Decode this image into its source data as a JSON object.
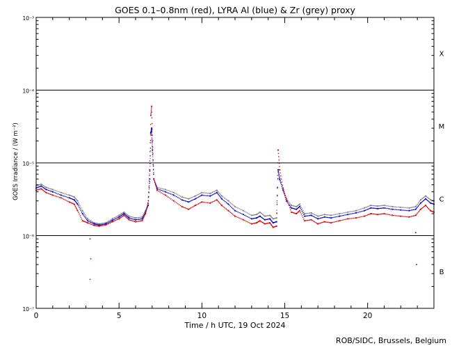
{
  "chart_data": {
    "type": "line",
    "title": "GOES 0.1–0.8nm (red), LYRA Al (blue) & Zr (grey) proxy",
    "xlabel": "Time / h UTC, 19 Oct 2024",
    "ylabel": "GOES Irradiance / (W m⁻²)",
    "xlim": [
      0,
      24
    ],
    "ylim": [
      1e-07,
      0.001
    ],
    "yscale": "log",
    "x_ticks": [
      {
        "value": 0,
        "label": "0"
      },
      {
        "value": 5,
        "label": "5"
      },
      {
        "value": 10,
        "label": "10"
      },
      {
        "value": 15,
        "label": "15"
      },
      {
        "value": 20,
        "label": "20"
      }
    ],
    "y_ticks": [
      {
        "value": 1e-07,
        "label": "10⁻⁷"
      },
      {
        "value": 1e-06,
        "label": "10⁻⁶"
      },
      {
        "value": 1e-05,
        "label": "10⁻⁵"
      },
      {
        "value": 0.0001,
        "label": "10⁻⁴"
      },
      {
        "value": 0.001,
        "label": "10⁻³"
      }
    ],
    "flare_classes": [
      {
        "label": "X",
        "value": 0.00032
      },
      {
        "label": "M",
        "value": 3.2e-05
      },
      {
        "label": "C",
        "value": 3.2e-06
      },
      {
        "label": "B",
        "value": 3.2e-07
      }
    ],
    "flare_lines": [
      0.0001,
      1e-05,
      1e-06
    ],
    "colors": {
      "goes": "#dd0000",
      "lyra_al": "#0000cc",
      "lyra_zr": "#808080",
      "axes": "#000000"
    },
    "series": [
      {
        "name": "GOES 0.1–0.8nm",
        "color": "#dd0000",
        "points": [
          [
            0.0,
            4.2e-06
          ],
          [
            0.3,
            4.4e-06
          ],
          [
            0.6,
            3.9e-06
          ],
          [
            1.0,
            3.6e-06
          ],
          [
            1.5,
            3.3e-06
          ],
          [
            2.0,
            2.9e-06
          ],
          [
            2.3,
            2.7e-06
          ],
          [
            2.5,
            2.2e-06
          ],
          [
            2.8,
            1.6e-06
          ],
          [
            3.1,
            1.5e-06
          ],
          [
            3.5,
            1.38e-06
          ],
          [
            3.8,
            1.35e-06
          ],
          [
            4.2,
            1.4e-06
          ],
          [
            4.6,
            1.55e-06
          ],
          [
            5.0,
            1.7e-06
          ],
          [
            5.3,
            1.9e-06
          ],
          [
            5.6,
            1.65e-06
          ],
          [
            6.0,
            1.55e-06
          ],
          [
            6.4,
            1.6e-06
          ],
          [
            6.6,
            2e-06
          ],
          [
            6.75,
            2.8e-06
          ],
          [
            6.85,
            8e-06
          ],
          [
            6.92,
            4.5e-05
          ],
          [
            6.97,
            6e-05
          ],
          [
            7.02,
            2e-05
          ],
          [
            7.1,
            6e-06
          ],
          [
            7.3,
            4.2e-06
          ],
          [
            7.8,
            3.6e-06
          ],
          [
            8.3,
            3e-06
          ],
          [
            8.8,
            2.5e-06
          ],
          [
            9.2,
            2.3e-06
          ],
          [
            9.6,
            2.6e-06
          ],
          [
            10.0,
            2.9e-06
          ],
          [
            10.5,
            2.8e-06
          ],
          [
            10.9,
            3.1e-06
          ],
          [
            11.2,
            2.6e-06
          ],
          [
            11.6,
            2.2e-06
          ],
          [
            12.0,
            1.85e-06
          ],
          [
            12.5,
            1.65e-06
          ],
          [
            13.0,
            1.45e-06
          ],
          [
            13.3,
            1.5e-06
          ],
          [
            13.5,
            1.6e-06
          ],
          [
            13.8,
            1.45e-06
          ],
          [
            14.1,
            1.5e-06
          ],
          [
            14.3,
            1.3e-06
          ],
          [
            14.5,
            1.35e-06
          ],
          [
            14.6,
            1.5e-05
          ],
          [
            14.7,
            8e-06
          ],
          [
            14.9,
            4.5e-06
          ],
          [
            15.1,
            3.2e-06
          ],
          [
            15.4,
            2.1e-06
          ],
          [
            15.7,
            2e-06
          ],
          [
            15.9,
            2.2e-06
          ],
          [
            16.2,
            1.6e-06
          ],
          [
            16.6,
            1.65e-06
          ],
          [
            17.0,
            1.45e-06
          ],
          [
            17.4,
            1.55e-06
          ],
          [
            17.8,
            1.5e-06
          ],
          [
            18.3,
            1.6e-06
          ],
          [
            18.8,
            1.7e-06
          ],
          [
            19.3,
            1.75e-06
          ],
          [
            19.8,
            1.85e-06
          ],
          [
            20.2,
            2e-06
          ],
          [
            20.6,
            1.95e-06
          ],
          [
            21.0,
            2e-06
          ],
          [
            21.5,
            1.9e-06
          ],
          [
            22.0,
            1.85e-06
          ],
          [
            22.5,
            1.8e-06
          ],
          [
            22.9,
            1.9e-06
          ],
          [
            23.2,
            2.3e-06
          ],
          [
            23.5,
            2.6e-06
          ],
          [
            23.8,
            2.2e-06
          ],
          [
            24.0,
            2.1e-06
          ]
        ]
      },
      {
        "name": "LYRA Al proxy",
        "color": "#0000cc",
        "points": [
          [
            0.0,
            4.5e-06
          ],
          [
            0.3,
            4.8e-06
          ],
          [
            0.6,
            4.3e-06
          ],
          [
            1.0,
            4e-06
          ],
          [
            1.5,
            3.6e-06
          ],
          [
            2.0,
            3.3e-06
          ],
          [
            2.3,
            3.1e-06
          ],
          [
            2.5,
            2.7e-06
          ],
          [
            2.8,
            2e-06
          ],
          [
            3.1,
            1.6e-06
          ],
          [
            3.5,
            1.45e-06
          ],
          [
            3.8,
            1.4e-06
          ],
          [
            4.2,
            1.45e-06
          ],
          [
            4.6,
            1.62e-06
          ],
          [
            5.0,
            1.8e-06
          ],
          [
            5.3,
            2e-06
          ],
          [
            5.6,
            1.75e-06
          ],
          [
            6.0,
            1.65e-06
          ],
          [
            6.4,
            1.7e-06
          ],
          [
            6.6,
            2.1e-06
          ],
          [
            6.75,
            2.6e-06
          ],
          [
            6.85,
            6e-06
          ],
          [
            6.92,
            2.6e-05
          ],
          [
            6.97,
            3e-05
          ],
          [
            7.02,
            1.5e-05
          ],
          [
            7.1,
            6e-06
          ],
          [
            7.3,
            4.4e-06
          ],
          [
            7.8,
            4e-06
          ],
          [
            8.3,
            3.6e-06
          ],
          [
            8.8,
            3.1e-06
          ],
          [
            9.2,
            2.9e-06
          ],
          [
            9.6,
            3.2e-06
          ],
          [
            10.0,
            3.6e-06
          ],
          [
            10.5,
            3.5e-06
          ],
          [
            10.9,
            3.9e-06
          ],
          [
            11.2,
            3.2e-06
          ],
          [
            11.6,
            2.7e-06
          ],
          [
            12.0,
            2.2e-06
          ],
          [
            12.5,
            1.95e-06
          ],
          [
            13.0,
            1.7e-06
          ],
          [
            13.3,
            1.75e-06
          ],
          [
            13.5,
            1.85e-06
          ],
          [
            13.8,
            1.65e-06
          ],
          [
            14.1,
            1.7e-06
          ],
          [
            14.3,
            1.5e-06
          ],
          [
            14.5,
            1.55e-06
          ],
          [
            14.6,
            8e-06
          ],
          [
            14.7,
            6e-06
          ],
          [
            14.9,
            4.2e-06
          ],
          [
            15.1,
            3e-06
          ],
          [
            15.4,
            2.4e-06
          ],
          [
            15.7,
            2.3e-06
          ],
          [
            15.9,
            2.5e-06
          ],
          [
            16.2,
            1.85e-06
          ],
          [
            16.6,
            1.9e-06
          ],
          [
            17.0,
            1.7e-06
          ],
          [
            17.4,
            1.8e-06
          ],
          [
            17.8,
            1.75e-06
          ],
          [
            18.3,
            1.85e-06
          ],
          [
            18.8,
            1.95e-06
          ],
          [
            19.3,
            2.05e-06
          ],
          [
            19.8,
            2.2e-06
          ],
          [
            20.2,
            2.4e-06
          ],
          [
            20.6,
            2.35e-06
          ],
          [
            21.0,
            2.4e-06
          ],
          [
            21.5,
            2.3e-06
          ],
          [
            22.0,
            2.25e-06
          ],
          [
            22.5,
            2.2e-06
          ],
          [
            22.9,
            2.3e-06
          ],
          [
            23.2,
            2.8e-06
          ],
          [
            23.5,
            3.2e-06
          ],
          [
            23.8,
            2.8e-06
          ],
          [
            24.0,
            2.7e-06
          ]
        ]
      },
      {
        "name": "LYRA Zr proxy",
        "color": "#808080",
        "points": [
          [
            0.0,
            4.8e-06
          ],
          [
            0.3,
            5.1e-06
          ],
          [
            0.6,
            4.6e-06
          ],
          [
            1.0,
            4.3e-06
          ],
          [
            1.5,
            3.9e-06
          ],
          [
            2.0,
            3.6e-06
          ],
          [
            2.3,
            3.4e-06
          ],
          [
            2.5,
            3e-06
          ],
          [
            2.8,
            2.2e-06
          ],
          [
            3.1,
            1.7e-06
          ],
          [
            3.5,
            1.5e-06
          ],
          [
            3.8,
            1.45e-06
          ],
          [
            4.2,
            1.5e-06
          ],
          [
            4.6,
            1.7e-06
          ],
          [
            5.0,
            1.9e-06
          ],
          [
            5.3,
            2.1e-06
          ],
          [
            5.6,
            1.85e-06
          ],
          [
            6.0,
            1.75e-06
          ],
          [
            6.4,
            1.8e-06
          ],
          [
            6.6,
            2.2e-06
          ],
          [
            6.75,
            2.7e-06
          ],
          [
            6.85,
            5.5e-06
          ],
          [
            6.92,
            2.4e-05
          ],
          [
            6.97,
            2.8e-05
          ],
          [
            7.02,
            1.4e-05
          ],
          [
            7.1,
            6e-06
          ],
          [
            7.3,
            4.6e-06
          ],
          [
            7.8,
            4.3e-06
          ],
          [
            8.3,
            3.9e-06
          ],
          [
            8.8,
            3.4e-06
          ],
          [
            9.2,
            3.2e-06
          ],
          [
            9.6,
            3.5e-06
          ],
          [
            10.0,
            3.9e-06
          ],
          [
            10.5,
            3.8e-06
          ],
          [
            10.9,
            4.2e-06
          ],
          [
            11.2,
            3.5e-06
          ],
          [
            11.6,
            3e-06
          ],
          [
            12.0,
            2.5e-06
          ],
          [
            12.5,
            2.2e-06
          ],
          [
            13.0,
            1.9e-06
          ],
          [
            13.3,
            1.95e-06
          ],
          [
            13.5,
            2.1e-06
          ],
          [
            13.8,
            1.85e-06
          ],
          [
            14.1,
            1.9e-06
          ],
          [
            14.3,
            1.7e-06
          ],
          [
            14.5,
            1.75e-06
          ],
          [
            14.6,
            7.5e-06
          ],
          [
            14.7,
            5.8e-06
          ],
          [
            14.9,
            4.3e-06
          ],
          [
            15.1,
            3.2e-06
          ],
          [
            15.4,
            2.6e-06
          ],
          [
            15.7,
            2.5e-06
          ],
          [
            15.9,
            2.7e-06
          ],
          [
            16.2,
            2e-06
          ],
          [
            16.6,
            2.05e-06
          ],
          [
            17.0,
            1.85e-06
          ],
          [
            17.4,
            1.95e-06
          ],
          [
            17.8,
            1.9e-06
          ],
          [
            18.3,
            2e-06
          ],
          [
            18.8,
            2.1e-06
          ],
          [
            19.3,
            2.2e-06
          ],
          [
            19.8,
            2.4e-06
          ],
          [
            20.2,
            2.6e-06
          ],
          [
            20.6,
            2.55e-06
          ],
          [
            21.0,
            2.6e-06
          ],
          [
            21.5,
            2.5e-06
          ],
          [
            22.0,
            2.45e-06
          ],
          [
            22.5,
            2.4e-06
          ],
          [
            22.9,
            2.5e-06
          ],
          [
            23.2,
            3.1e-06
          ],
          [
            23.5,
            3.5e-06
          ],
          [
            23.8,
            3.1e-06
          ],
          [
            24.0,
            3e-06
          ]
        ]
      },
      {
        "name": "GOES 0.1–0.8nm outlier points",
        "color": "#dd0000",
        "points": [
          [
            3.25,
            2.5e-07
          ],
          [
            3.3,
            4.8e-07
          ]
        ]
      },
      {
        "name": "LYRA Al outlier points",
        "color": "#0000cc",
        "points": [
          [
            3.25,
            9e-07
          ],
          [
            22.95,
            4e-07
          ],
          [
            22.9,
            1.1e-06
          ]
        ]
      }
    ]
  },
  "footer": "ROB/SIDC, Brussels, Belgium"
}
